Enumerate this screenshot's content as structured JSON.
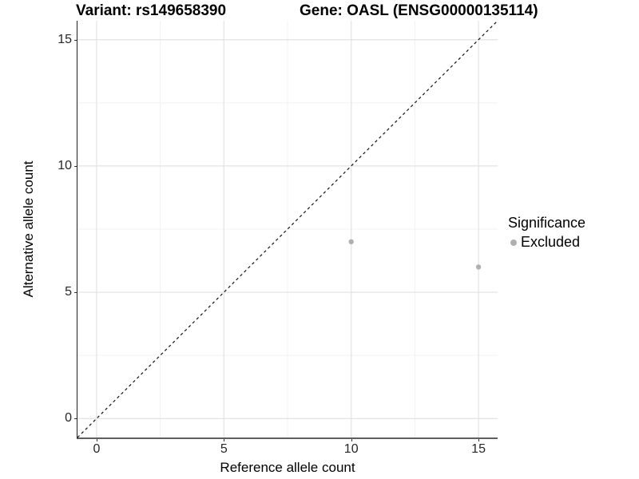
{
  "titles": {
    "variant": "Variant: rs149658390",
    "gene": "Gene: OASL (ENSG00000135114)"
  },
  "axes": {
    "x": {
      "label": "Reference allele count",
      "ticks": [
        "0",
        "5",
        "10",
        "15"
      ]
    },
    "y": {
      "label": "Alternative allele count",
      "ticks": [
        "0",
        "5",
        "10",
        "15"
      ]
    }
  },
  "legend": {
    "title": "Significance",
    "items": [
      {
        "label": "Excluded",
        "color": "#b0b0b0"
      }
    ]
  },
  "chart_data": {
    "type": "scatter",
    "title": "Variant: rs149658390 — Gene: OASL (ENSG00000135114)",
    "xlabel": "Reference allele count",
    "ylabel": "Alternative allele count",
    "xlim": [
      -0.75,
      15.75
    ],
    "ylim": [
      -0.75,
      15.75
    ],
    "x_ticks": [
      0,
      5,
      10,
      15
    ],
    "y_ticks": [
      0,
      5,
      10,
      15
    ],
    "series": [
      {
        "name": "Excluded",
        "color": "#b0b0b0",
        "point_radius": 3.2,
        "points": [
          [
            10,
            7
          ],
          [
            15,
            6
          ]
        ]
      }
    ],
    "reference_line": {
      "type": "identity",
      "equation": "y = x",
      "style": "dashed",
      "color": "#111111"
    },
    "grid": "major+minor",
    "grid_major_color": "#e3e3e3",
    "grid_minor_color": "#f1f1f1",
    "legend_position": "right",
    "legend_title": "Significance"
  }
}
